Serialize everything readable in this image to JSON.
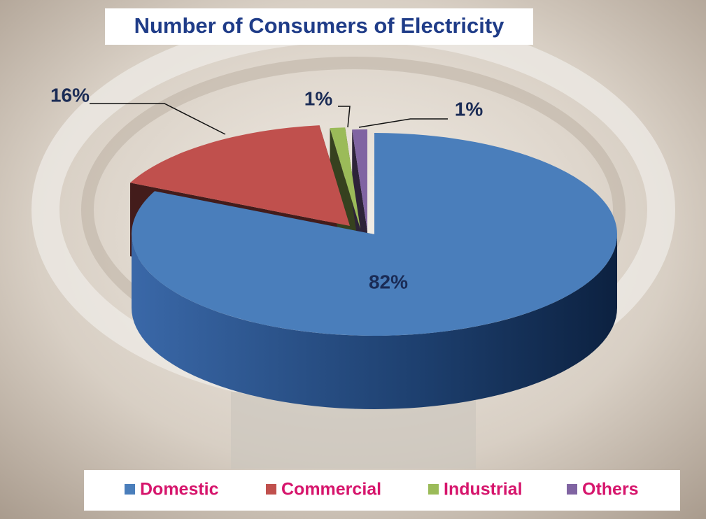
{
  "chart_data": {
    "type": "pie",
    "title": "Number of Consumers of Electricity",
    "categories": [
      "Domestic",
      "Commercial",
      "Industrial",
      "Others"
    ],
    "values": [
      82,
      16,
      1,
      1
    ],
    "value_labels": [
      "82%",
      "16%",
      "1%",
      "1%"
    ],
    "colors": [
      "#4a7ebb",
      "#c0504d",
      "#9bbb59",
      "#8064a2"
    ],
    "legend": "bottom"
  }
}
